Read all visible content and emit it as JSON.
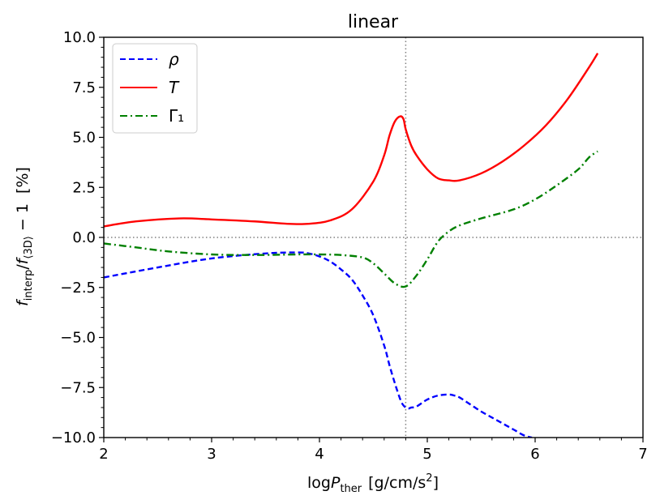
{
  "chart_data": {
    "type": "line",
    "title": "linear",
    "xlabel": {
      "prefix": "log",
      "var": "P",
      "sub": "ther",
      "units": "[g/cm/s",
      "sup": "2",
      "close": "]"
    },
    "ylabel": {
      "var1": "f",
      "sub1": "interp",
      "slash": "/",
      "var2": "f",
      "sub2": "⟨3D⟩",
      "tail": " − 1  [%]"
    },
    "xlim": [
      2,
      7
    ],
    "ylim": [
      -10,
      10
    ],
    "xticks": [
      2,
      3,
      4,
      5,
      6,
      7
    ],
    "xtick_labels": [
      "2",
      "3",
      "4",
      "5",
      "6",
      "7"
    ],
    "yticks": [
      -10,
      -7.5,
      -5,
      -2.5,
      0,
      2.5,
      5,
      7.5,
      10
    ],
    "ytick_labels": [
      "−10.0",
      "−7.5",
      "−5.0",
      "−2.5",
      "0.0",
      "2.5",
      "5.0",
      "7.5",
      "10.0"
    ],
    "reference_lines": {
      "horizontal_y": 0,
      "vertical_x": 4.8
    },
    "series": [
      {
        "name": "ρ",
        "color": "#0000ff",
        "dash": "dashed",
        "x": [
          2.0,
          2.5,
          3.0,
          3.5,
          3.8,
          3.9,
          4.0,
          4.1,
          4.2,
          4.3,
          4.4,
          4.5,
          4.6,
          4.65,
          4.7,
          4.75,
          4.78,
          4.82,
          4.85,
          4.9,
          5.0,
          5.1,
          5.2,
          5.25,
          5.3,
          5.4,
          5.5,
          5.6,
          5.7,
          5.8,
          5.9,
          5.97
        ],
        "y": [
          -2.0,
          -1.5,
          -1.05,
          -0.8,
          -0.75,
          -0.8,
          -0.95,
          -1.2,
          -1.6,
          -2.1,
          -2.9,
          -3.9,
          -5.4,
          -6.4,
          -7.3,
          -8.1,
          -8.4,
          -8.55,
          -8.5,
          -8.45,
          -8.1,
          -7.9,
          -7.85,
          -7.9,
          -8.0,
          -8.35,
          -8.7,
          -9.0,
          -9.3,
          -9.6,
          -9.9,
          -10.0
        ]
      },
      {
        "name": "T",
        "color": "#ff0000",
        "dash": "solid",
        "x": [
          2.0,
          2.3,
          2.7,
          3.0,
          3.4,
          3.7,
          3.9,
          4.1,
          4.3,
          4.5,
          4.6,
          4.65,
          4.7,
          4.75,
          4.78,
          4.8,
          4.85,
          4.9,
          5.0,
          5.1,
          5.2,
          5.3,
          5.5,
          5.7,
          5.9,
          6.1,
          6.3,
          6.5,
          6.58
        ],
        "y": [
          0.55,
          0.8,
          0.95,
          0.9,
          0.8,
          0.68,
          0.68,
          0.85,
          1.4,
          2.8,
          4.1,
          5.1,
          5.8,
          6.05,
          5.9,
          5.4,
          4.6,
          4.1,
          3.4,
          2.95,
          2.85,
          2.85,
          3.2,
          3.8,
          4.6,
          5.6,
          6.9,
          8.5,
          9.2
        ]
      },
      {
        "name": "Γ₁",
        "color": "#008000",
        "dash": "dashdot",
        "x": [
          2.0,
          2.3,
          2.6,
          3.0,
          3.4,
          3.8,
          4.0,
          4.2,
          4.4,
          4.5,
          4.6,
          4.7,
          4.8,
          4.9,
          5.0,
          5.1,
          5.2,
          5.3,
          5.5,
          5.8,
          6.0,
          6.2,
          6.4,
          6.5,
          6.58
        ],
        "y": [
          -0.3,
          -0.5,
          -0.7,
          -0.85,
          -0.88,
          -0.85,
          -0.85,
          -0.88,
          -1.0,
          -1.3,
          -1.8,
          -2.3,
          -2.45,
          -1.9,
          -1.1,
          -0.2,
          0.3,
          0.6,
          0.95,
          1.4,
          1.9,
          2.6,
          3.4,
          4.0,
          4.3
        ]
      }
    ],
    "legend_placement": "top-left",
    "grid": false
  }
}
